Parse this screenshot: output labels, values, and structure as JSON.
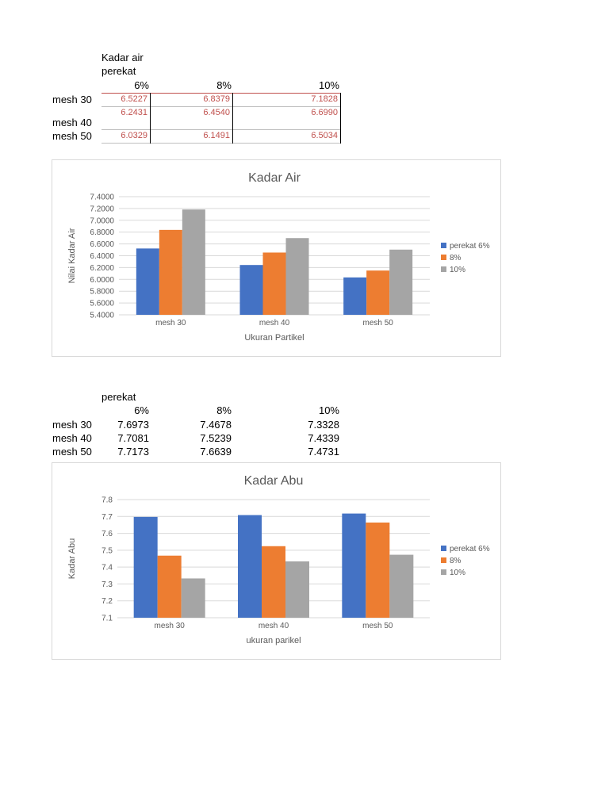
{
  "table1": {
    "title_line1": "Kadar air",
    "title_line2": "perekat",
    "columns": [
      "6%",
      "8%",
      "10%"
    ],
    "rows": [
      {
        "label": "mesh 30",
        "values": [
          "6.5227",
          "6.8379",
          "7.1828"
        ]
      },
      {
        "label": "mesh 40",
        "values": [
          "6.2431",
          "6.4540",
          "6.6990"
        ]
      },
      {
        "label": "mesh 50",
        "values": [
          "6.0329",
          "6.1491",
          "6.5034"
        ]
      }
    ]
  },
  "table2": {
    "title": "perekat",
    "columns": [
      "6%",
      "8%",
      "10%"
    ],
    "rows": [
      {
        "label": "mesh 30",
        "values": [
          "7.6973",
          "7.4678",
          "7.3328"
        ]
      },
      {
        "label": "mesh 40",
        "values": [
          "7.7081",
          "7.5239",
          "7.4339"
        ]
      },
      {
        "label": "mesh 50",
        "values": [
          "7.7173",
          "7.6639",
          "7.4731"
        ]
      }
    ]
  },
  "colors": {
    "series": [
      "#4472c4",
      "#ed7d31",
      "#a5a5a5"
    ],
    "table_values": "#c0504d",
    "grid": "#d9d9d9",
    "axis_text": "#595959"
  },
  "chart_data": [
    {
      "type": "bar",
      "title": "Kadar Air",
      "xlabel": "Ukuran Partikel",
      "ylabel": "Nilai Kadar Air",
      "categories": [
        "mesh 30",
        "mesh 40",
        "mesh 50"
      ],
      "series": [
        {
          "name": "perekat 6%",
          "values": [
            6.5227,
            6.2431,
            6.0329
          ]
        },
        {
          "name": "8%",
          "values": [
            6.8379,
            6.454,
            6.1491
          ]
        },
        {
          "name": "10%",
          "values": [
            7.1828,
            6.699,
            6.5034
          ]
        }
      ],
      "ylim": [
        5.4,
        7.4
      ],
      "yticks": [
        "5.4000",
        "5.6000",
        "5.8000",
        "6.0000",
        "6.2000",
        "6.4000",
        "6.6000",
        "6.8000",
        "7.0000",
        "7.2000",
        "7.4000"
      ],
      "grid": true,
      "legend": "right"
    },
    {
      "type": "bar",
      "title": "Kadar Abu",
      "xlabel": "ukuran parikel",
      "ylabel": "Kadar Abu",
      "categories": [
        "mesh 30",
        "mesh 40",
        "mesh 50"
      ],
      "series": [
        {
          "name": "perekat 6%",
          "values": [
            7.6973,
            7.7081,
            7.7173
          ]
        },
        {
          "name": "8%",
          "values": [
            7.4678,
            7.5239,
            7.6639
          ]
        },
        {
          "name": "10%",
          "values": [
            7.3328,
            7.4339,
            7.4731
          ]
        }
      ],
      "ylim": [
        7.1,
        7.8
      ],
      "yticks": [
        "7.1",
        "7.2",
        "7.3",
        "7.4",
        "7.5",
        "7.6",
        "7.7",
        "7.8"
      ],
      "grid": true,
      "legend": "right"
    }
  ]
}
